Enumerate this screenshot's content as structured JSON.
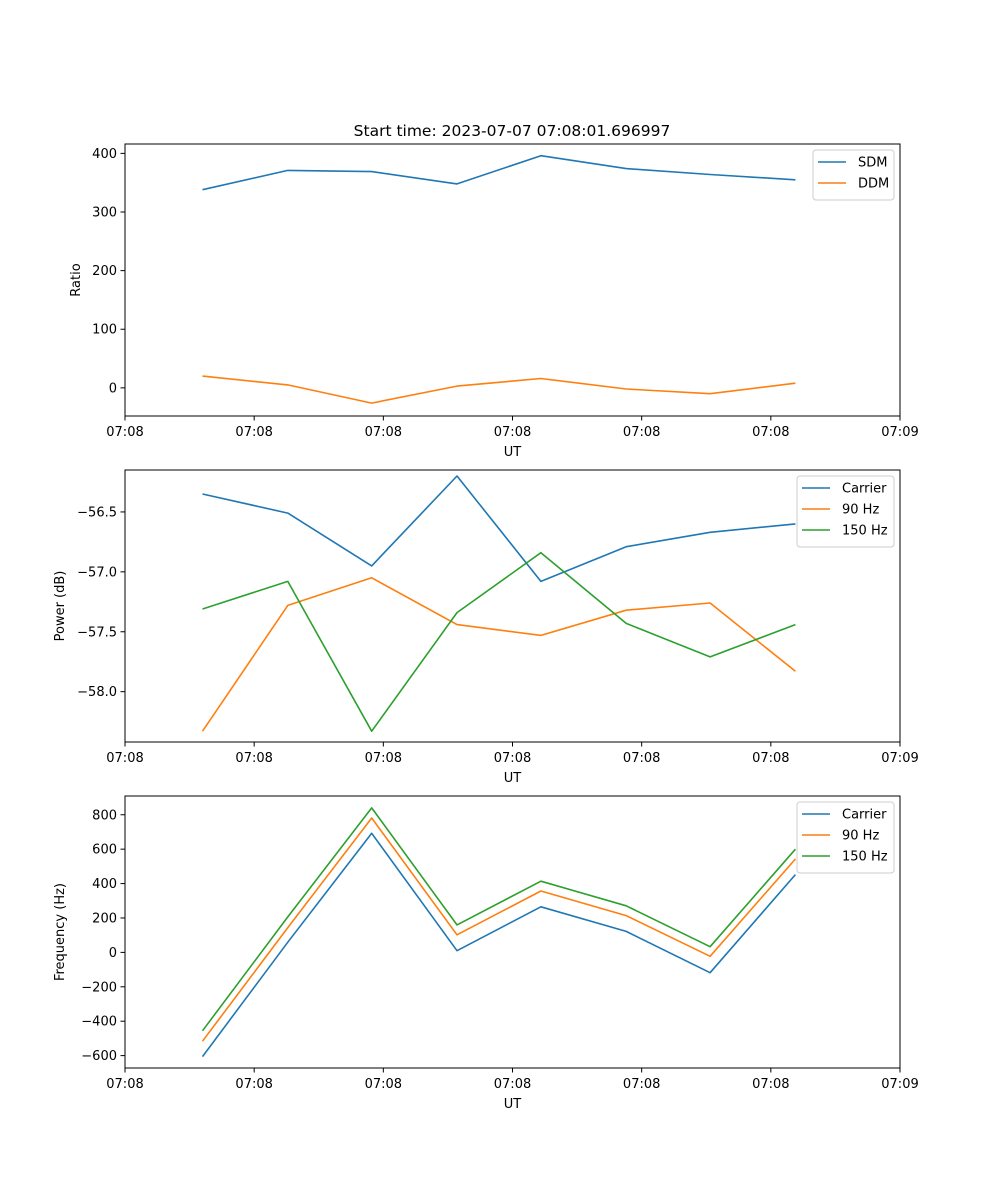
{
  "figure": {
    "title": "Start time: 2023-07-07 07:08:01.696997"
  },
  "chart_data": [
    {
      "type": "line",
      "name": "ratio",
      "title": "Start time: 2023-07-07 07:08:01.696997",
      "xlabel": "UT",
      "ylabel": "Ratio",
      "x_tick_labels": [
        "07:08",
        "07:08",
        "07:08",
        "07:08",
        "07:08",
        "07:08",
        "07:09"
      ],
      "x": [
        0.6,
        1.26,
        1.91,
        2.57,
        3.22,
        3.88,
        4.53,
        5.19
      ],
      "xlim": [
        0,
        6
      ],
      "ylim": [
        -48,
        416
      ],
      "yticks": [
        0,
        100,
        200,
        300,
        400
      ],
      "legend_position": "upper-right",
      "series": [
        {
          "name": "SDM",
          "color": "#1f77b4",
          "values": [
            338,
            371,
            369,
            348,
            396,
            374,
            364,
            355
          ]
        },
        {
          "name": "DDM",
          "color": "#ff7f0e",
          "values": [
            20,
            5,
            -26,
            3,
            16,
            -2,
            -10,
            8
          ]
        }
      ]
    },
    {
      "type": "line",
      "name": "power",
      "xlabel": "UT",
      "ylabel": "Power (dB)",
      "x_tick_labels": [
        "07:08",
        "07:08",
        "07:08",
        "07:08",
        "07:08",
        "07:08",
        "07:09"
      ],
      "x": [
        0.6,
        1.26,
        1.91,
        2.57,
        3.22,
        3.88,
        4.53,
        5.19
      ],
      "xlim": [
        0,
        6
      ],
      "ylim": [
        -58.42,
        -56.15
      ],
      "yticks": [
        -58.0,
        -57.5,
        -57.0,
        -56.5
      ],
      "ytick_labels": [
        "−58.0",
        "−57.5",
        "−57.0",
        "−56.5"
      ],
      "legend_position": "upper-right",
      "series": [
        {
          "name": "Carrier",
          "color": "#1f77b4",
          "values": [
            -56.35,
            -56.51,
            -56.95,
            -56.2,
            -57.08,
            -56.79,
            -56.67,
            -56.6
          ]
        },
        {
          "name": "90 Hz",
          "color": "#ff7f0e",
          "values": [
            -58.33,
            -57.28,
            -57.05,
            -57.44,
            -57.53,
            -57.32,
            -57.26,
            -57.83
          ]
        },
        {
          "name": "150 Hz",
          "color": "#2ca02c",
          "values": [
            -57.31,
            -57.08,
            -58.33,
            -57.34,
            -56.84,
            -57.43,
            -57.71,
            -57.44
          ]
        }
      ]
    },
    {
      "type": "line",
      "name": "frequency",
      "xlabel": "UT",
      "ylabel": "Frequency (Hz)",
      "x_tick_labels": [
        "07:08",
        "07:08",
        "07:08",
        "07:08",
        "07:08",
        "07:08",
        "07:09"
      ],
      "x": [
        0.6,
        1.26,
        1.91,
        2.57,
        3.22,
        3.88,
        4.53,
        5.19
      ],
      "xlim": [
        0,
        6
      ],
      "ylim": [
        -672,
        909
      ],
      "yticks": [
        -600,
        -400,
        -200,
        0,
        200,
        400,
        600,
        800
      ],
      "ytick_labels": [
        "−600",
        "−400",
        "−200",
        "0",
        "200",
        "400",
        "600",
        "800"
      ],
      "legend_position": "upper-right",
      "series": [
        {
          "name": "Carrier",
          "color": "#1f77b4",
          "values": [
            -606,
            59,
            692,
            10,
            265,
            122,
            -118,
            452
          ]
        },
        {
          "name": "90 Hz",
          "color": "#ff7f0e",
          "values": [
            -516,
            144,
            781,
            102,
            357,
            214,
            -23,
            543
          ]
        },
        {
          "name": "150 Hz",
          "color": "#2ca02c",
          "values": [
            -456,
            206,
            840,
            160,
            414,
            271,
            33,
            600
          ]
        }
      ]
    }
  ]
}
